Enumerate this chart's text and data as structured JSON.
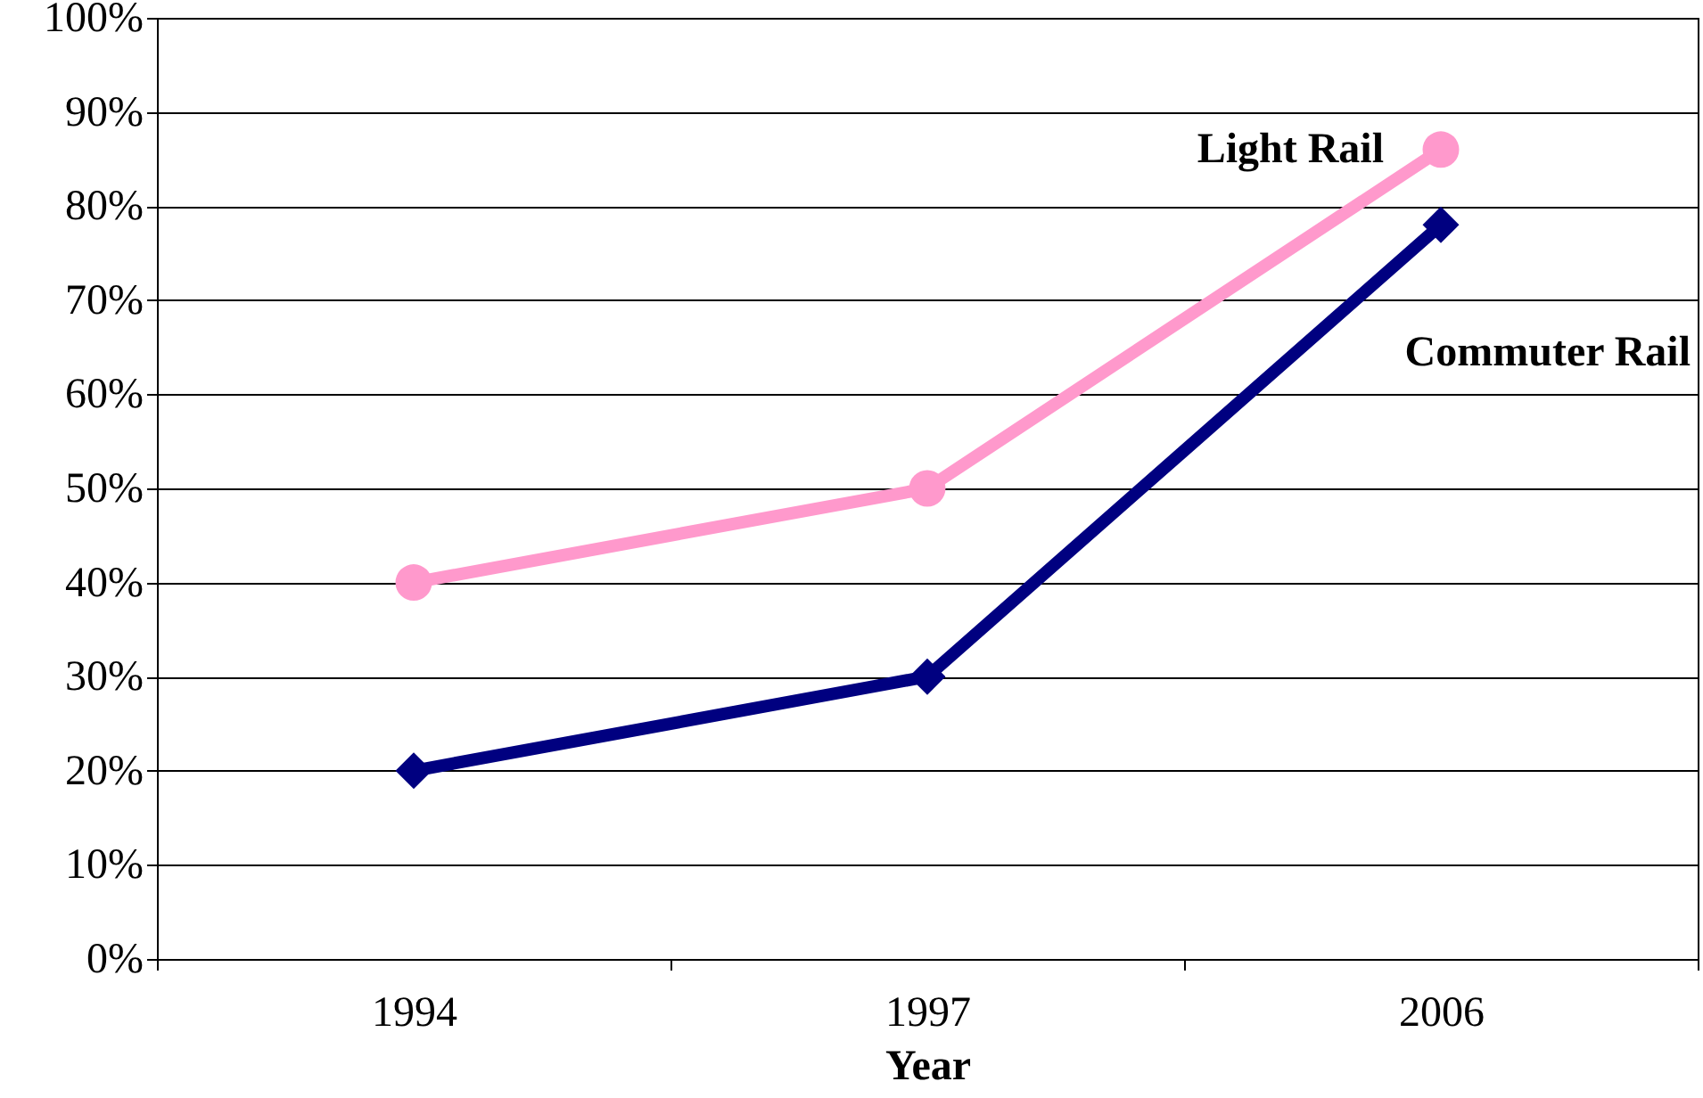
{
  "chart_data": {
    "type": "line",
    "xlabel": "Year",
    "categories": [
      "1994",
      "1997",
      "2006"
    ],
    "series": [
      {
        "name": "Light Rail",
        "color": "#ff99cc",
        "marker": "circle",
        "values": [
          40,
          50,
          86
        ]
      },
      {
        "name": "Commuter Rail",
        "color": "#000080",
        "marker": "diamond",
        "values": [
          20,
          30,
          78
        ]
      }
    ],
    "ylim": [
      0,
      100
    ],
    "yticks": [
      {
        "value": 0,
        "label": "0%"
      },
      {
        "value": 10,
        "label": "10%"
      },
      {
        "value": 20,
        "label": "20%"
      },
      {
        "value": 30,
        "label": "30%"
      },
      {
        "value": 40,
        "label": "40%"
      },
      {
        "value": 50,
        "label": "50%"
      },
      {
        "value": 60,
        "label": "60%"
      },
      {
        "value": 70,
        "label": "70%"
      },
      {
        "value": 80,
        "label": "80%"
      },
      {
        "value": 90,
        "label": "90%"
      },
      {
        "value": 100,
        "label": "100%"
      }
    ],
    "grid": "y",
    "line_style": "solid"
  }
}
